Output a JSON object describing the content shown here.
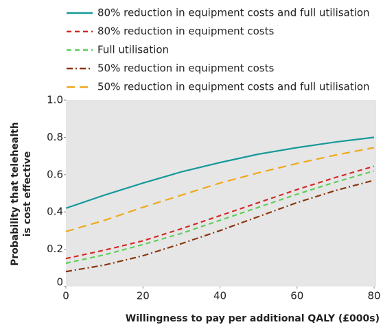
{
  "chart_data": {
    "type": "line",
    "ylabel": [
      "Probability that telehealth",
      "is cost effective"
    ],
    "xlabel": "Willingness to pay per additional QALY (£000s)",
    "x": [
      0,
      10,
      20,
      30,
      40,
      50,
      60,
      70,
      80
    ],
    "series": [
      {
        "name": "80% reduction in equipment costs and full utilisation",
        "color": "#17999a",
        "dash": "solid",
        "values": [
          0.42,
          0.49,
          0.555,
          0.615,
          0.665,
          0.71,
          0.745,
          0.775,
          0.8
        ]
      },
      {
        "name": "80% reduction in equipment costs",
        "color": "#d12a26",
        "dash": "dashed",
        "values": [
          0.15,
          0.195,
          0.245,
          0.31,
          0.38,
          0.45,
          0.52,
          0.585,
          0.645
        ]
      },
      {
        "name": "Full utilisation",
        "color": "#5fcd5a",
        "dash": "dashed",
        "values": [
          0.125,
          0.17,
          0.225,
          0.285,
          0.355,
          0.425,
          0.495,
          0.56,
          0.62
        ]
      },
      {
        "name": "50% reduction in equipment costs",
        "color": "#8a3510",
        "dash": "dashdot",
        "values": [
          0.08,
          0.115,
          0.165,
          0.23,
          0.3,
          0.375,
          0.45,
          0.515,
          0.57
        ]
      },
      {
        "name": "50% reduction in equipment costs and full utilisation",
        "color": "#f0a81a",
        "dash": "longdash",
        "values": [
          0.295,
          0.355,
          0.425,
          0.49,
          0.555,
          0.61,
          0.66,
          0.705,
          0.745
        ]
      }
    ],
    "xlim": [
      0,
      80
    ],
    "xticks": [
      0,
      20,
      40,
      60,
      80
    ],
    "ylim": [
      0,
      1
    ],
    "yticks": [
      0,
      0.2,
      0.4,
      0.6,
      0.8,
      {
        "value": 1,
        "label": "1.0"
      }
    ],
    "background": "#e6e6e6"
  }
}
